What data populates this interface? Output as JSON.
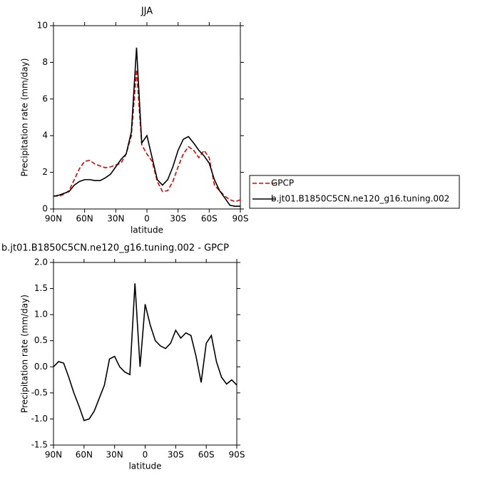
{
  "chart_data": [
    {
      "type": "line",
      "title": "JJA",
      "xlabel": "latitude",
      "ylabel": "Precipitation rate (mm/day)",
      "x": [
        90,
        85,
        80,
        75,
        70,
        65,
        60,
        55,
        50,
        45,
        40,
        35,
        30,
        25,
        20,
        15,
        10,
        5,
        0,
        -5,
        -10,
        -15,
        -20,
        -25,
        -30,
        -35,
        -40,
        -45,
        -50,
        -55,
        -60,
        -65,
        -70,
        -75,
        -80,
        -85,
        -90
      ],
      "xlim": [
        90,
        -90
      ],
      "xticks": [
        {
          "value": 90,
          "label": "90N"
        },
        {
          "value": 60,
          "label": "60N"
        },
        {
          "value": 30,
          "label": "30N"
        },
        0,
        {
          "value": -30,
          "label": "30S"
        },
        {
          "value": -60,
          "label": "60S"
        },
        {
          "value": -90,
          "label": "90S"
        }
      ],
      "ylim": [
        0,
        10
      ],
      "yticks": [
        0,
        2,
        4,
        6,
        8,
        10
      ],
      "legend": "right",
      "series": [
        {
          "name": "GPCP",
          "color": "#e00000",
          "dashed": true,
          "values": [
            0.7,
            0.7,
            0.8,
            1.0,
            1.6,
            2.2,
            2.6,
            2.65,
            2.45,
            2.35,
            2.25,
            2.3,
            2.4,
            2.5,
            3.0,
            4.0,
            7.6,
            3.5,
            3.0,
            2.6,
            1.5,
            0.95,
            1.0,
            1.5,
            2.3,
            3.0,
            3.4,
            3.2,
            2.8,
            3.2,
            2.8,
            1.3,
            1.0,
            0.7,
            0.5,
            0.4,
            0.5
          ]
        },
        {
          "name": "b.jt01.B1850C5CN.ne120_g16.tuning.002",
          "color": "#000000",
          "dashed": false,
          "values": [
            0.7,
            0.75,
            0.85,
            0.95,
            1.3,
            1.5,
            1.6,
            1.6,
            1.55,
            1.55,
            1.7,
            1.9,
            2.3,
            2.7,
            3.0,
            4.2,
            8.8,
            3.6,
            4.0,
            2.8,
            1.6,
            1.3,
            1.6,
            2.3,
            3.2,
            3.8,
            3.95,
            3.6,
            3.2,
            2.9,
            2.5,
            1.6,
            1.0,
            0.6,
            0.2,
            0.15,
            0.15
          ]
        }
      ]
    },
    {
      "type": "line",
      "title": "b.jt01.B1850C5CN.ne120_g16.tuning.002 - GPCP",
      "xlabel": "latitude",
      "ylabel": "Precipitation rate (mm/day)",
      "x": [
        90,
        85,
        80,
        75,
        70,
        65,
        60,
        55,
        50,
        45,
        40,
        35,
        30,
        25,
        20,
        15,
        10,
        5,
        0,
        -5,
        -10,
        -15,
        -20,
        -25,
        -30,
        -35,
        -40,
        -45,
        -50,
        -55,
        -60,
        -65,
        -70,
        -75,
        -80,
        -85,
        -90
      ],
      "xlim": [
        90,
        -90
      ],
      "xticks": [
        {
          "value": 90,
          "label": "90N"
        },
        {
          "value": 60,
          "label": "60N"
        },
        {
          "value": 30,
          "label": "30N"
        },
        0,
        {
          "value": -30,
          "label": "30S"
        },
        {
          "value": -60,
          "label": "60S"
        },
        {
          "value": -90,
          "label": "90S"
        }
      ],
      "ylim": [
        -1.5,
        2.0
      ],
      "yticks": [
        -1.5,
        {
          "value": -1.0,
          "label": "-1.0"
        },
        -0.5,
        {
          "value": 0.0,
          "label": "0.0"
        },
        0.5,
        {
          "value": 1.0,
          "label": "1.0"
        },
        1.5,
        {
          "value": 2.0,
          "label": "2.0"
        }
      ],
      "series": [
        {
          "color": "#000000",
          "dashed": false,
          "values": [
            0.0,
            0.1,
            0.07,
            -0.2,
            -0.5,
            -0.75,
            -1.03,
            -1.0,
            -0.85,
            -0.6,
            -0.35,
            0.15,
            0.2,
            0.0,
            -0.1,
            -0.15,
            1.6,
            0.0,
            1.2,
            0.8,
            0.5,
            0.4,
            0.35,
            0.45,
            0.7,
            0.55,
            0.65,
            0.6,
            0.2,
            -0.3,
            0.45,
            0.6,
            0.1,
            -0.2,
            -0.33,
            -0.25,
            -0.35
          ]
        }
      ]
    }
  ]
}
